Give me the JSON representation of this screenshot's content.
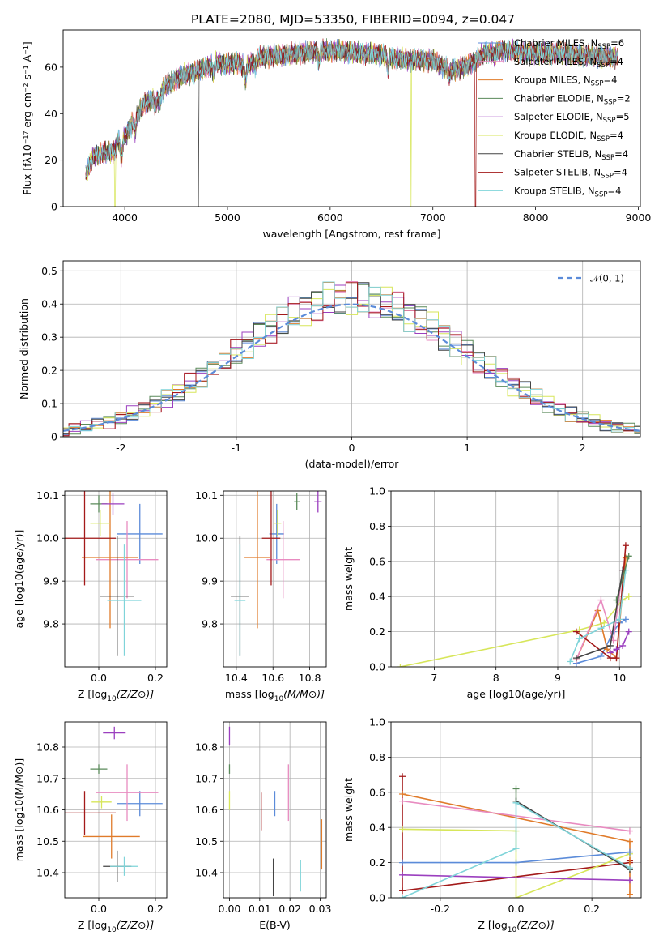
{
  "figure": {
    "title": "PLATE=2080, MJD=53350, FIBERID=0094, z=0.047"
  },
  "colors": {
    "Chabrier MILES": "#5b8bd9",
    "Salpeter MILES": "#e88bc0",
    "Kroupa MILES": "#e07b2a",
    "Chabrier ELODIE": "#5a8a5a",
    "Salpeter ELODIE": "#9b3fbf",
    "Kroupa ELODIE": "#d7e65a",
    "Chabrier STELIB": "#444444",
    "Salpeter STELIB": "#a31a1a",
    "Kroupa STELIB": "#7fd4d9"
  },
  "chart_data": [
    {
      "id": "spectrum",
      "type": "line",
      "xlabel": "wavelength [Angstrom, rest frame]",
      "ylabel": "Flux [fλ10⁻¹⁷ erg cm⁻² s⁻¹ A⁻¹]",
      "xlim": [
        3400,
        9020
      ],
      "ylim": [
        0,
        76
      ],
      "xticks": [
        4000,
        5000,
        6000,
        7000,
        8000,
        9000
      ],
      "yticks": [
        0,
        20,
        40,
        60
      ],
      "grid": false,
      "legend_position": "top-right",
      "series": [
        {
          "name": "Chabrier MILES, N_SSP=6",
          "label_main": "Chabrier MILES, N",
          "label_sub": "SSP",
          "label_tail": "=6"
        },
        {
          "name": "Salpeter MILES, N_SSP=4",
          "label_main": "Salpeter MILES, N",
          "label_sub": "SSP",
          "label_tail": "=4"
        },
        {
          "name": "Kroupa MILES, N_SSP=4",
          "label_main": "Kroupa MILES, N",
          "label_sub": "SSP",
          "label_tail": "=4"
        },
        {
          "name": "Chabrier ELODIE, N_SSP=2",
          "label_main": "Chabrier ELODIE, N",
          "label_sub": "SSP",
          "label_tail": "=2"
        },
        {
          "name": "Salpeter ELODIE, N_SSP=5",
          "label_main": "Salpeter ELODIE, N",
          "label_sub": "SSP",
          "label_tail": "=5"
        },
        {
          "name": "Kroupa ELODIE, N_SSP=4",
          "label_main": "Kroupa ELODIE, N",
          "label_sub": "SSP",
          "label_tail": "=4"
        },
        {
          "name": "Chabrier STELIB, N_SSP=4",
          "label_main": "Chabrier STELIB, N",
          "label_sub": "SSP",
          "label_tail": "=4"
        },
        {
          "name": "Salpeter STELIB, N_SSP=4",
          "label_main": "Salpeter STELIB, N",
          "label_sub": "SSP",
          "label_tail": "=4"
        },
        {
          "name": "Kroupa STELIB, N_SSP=4",
          "label_main": "Kroupa STELIB, N",
          "label_sub": "SSP",
          "label_tail": "=4"
        }
      ],
      "continuum": [
        [
          3620,
          14
        ],
        [
          3700,
          22
        ],
        [
          3800,
          23
        ],
        [
          3900,
          24
        ],
        [
          3960,
          28
        ],
        [
          4000,
          30
        ],
        [
          4100,
          38
        ],
        [
          4200,
          45
        ],
        [
          4300,
          46
        ],
        [
          4400,
          52
        ],
        [
          4500,
          55
        ],
        [
          4600,
          57
        ],
        [
          4700,
          58
        ],
        [
          4800,
          60
        ],
        [
          4900,
          62
        ],
        [
          5000,
          61
        ],
        [
          5100,
          62
        ],
        [
          5175,
          60
        ],
        [
          5300,
          64
        ],
        [
          5500,
          65
        ],
        [
          5700,
          66
        ],
        [
          5900,
          67
        ],
        [
          6100,
          67
        ],
        [
          6300,
          66
        ],
        [
          6560,
          65
        ],
        [
          6600,
          64
        ],
        [
          6800,
          63
        ],
        [
          7000,
          63
        ],
        [
          7100,
          60
        ],
        [
          7200,
          59
        ],
        [
          7300,
          60
        ],
        [
          7400,
          62
        ],
        [
          7500,
          66
        ],
        [
          7700,
          67
        ],
        [
          8000,
          66
        ],
        [
          8200,
          66
        ],
        [
          8500,
          65
        ],
        [
          8800,
          64
        ]
      ],
      "dips": [
        [
          3933,
          3
        ],
        [
          3968,
          -8
        ],
        [
          4102,
          -6
        ],
        [
          4300,
          -3
        ],
        [
          4340,
          -5
        ],
        [
          4861,
          -4
        ],
        [
          5175,
          -6
        ],
        [
          5270,
          -3
        ],
        [
          5890,
          -5
        ],
        [
          6563,
          -6
        ],
        [
          7160,
          -4
        ],
        [
          7600,
          -3
        ]
      ],
      "spikes": [
        {
          "x": 3905,
          "series": 5
        },
        {
          "x": 4720,
          "series": 6
        },
        {
          "x": 6790,
          "series": 5
        },
        {
          "x": 7415,
          "series": 7
        }
      ]
    },
    {
      "id": "residuals",
      "type": "line",
      "xlabel": "(data-model)/error",
      "ylabel": "Normed distribution",
      "xlim": [
        -2.5,
        2.5
      ],
      "ylim": [
        0,
        0.53
      ],
      "xticks": [
        -2,
        -1,
        0,
        1,
        2
      ],
      "yticks": [
        0.0,
        0.1,
        0.2,
        0.3,
        0.4,
        0.5
      ],
      "grid": true,
      "legend_position": "top-right",
      "reference": {
        "name": "N(0,1)",
        "label": "𝒩(0, 1)",
        "mean": 0,
        "sigma": 1
      },
      "bin_width": 0.1
    },
    {
      "id": "age_vs_Z",
      "type": "scatter",
      "xlabel_main": "Z [log",
      "xlabel_sub": "10",
      "xlabel_tail": "(Z/Z⊙)]",
      "ylabel": "age  [log10(age/yr)]",
      "xlim": [
        -0.12,
        0.24
      ],
      "ylim": [
        9.7,
        10.11
      ],
      "xticks": [
        0.0,
        0.2
      ],
      "yticks": [
        9.8,
        9.9,
        10.0,
        10.1
      ],
      "grid": true,
      "points": [
        {
          "series": 0,
          "x": 0.145,
          "y": 10.01,
          "xerr": 0.08,
          "yerr": 0.07
        },
        {
          "series": 1,
          "x": 0.1,
          "y": 9.95,
          "xerr": 0.11,
          "yerr": 0.09
        },
        {
          "series": 2,
          "x": 0.04,
          "y": 9.955,
          "xerr": 0.1,
          "yerr": 0.165
        },
        {
          "series": 3,
          "x": 0.0,
          "y": 10.08,
          "xerr": 0.03,
          "yerr": 0.02
        },
        {
          "series": 4,
          "x": 0.05,
          "y": 10.08,
          "xerr": 0.04,
          "yerr": 0.025
        },
        {
          "series": 5,
          "x": 0.005,
          "y": 10.035,
          "xerr": 0.035,
          "yerr": 0.03
        },
        {
          "series": 6,
          "x": 0.065,
          "y": 9.865,
          "xerr": 0.06,
          "yerr": 0.14
        },
        {
          "series": 7,
          "x": -0.05,
          "y": 10.0,
          "xerr": 0.11,
          "yerr": 0.11
        },
        {
          "series": 8,
          "x": 0.09,
          "y": 9.855,
          "xerr": 0.06,
          "yerr": 0.13
        }
      ]
    },
    {
      "id": "age_vs_mass",
      "type": "scatter",
      "xlabel_main": "mass [log",
      "xlabel_sub": "10",
      "xlabel_tail": "(M/M⊙)]",
      "xlim": [
        10.33,
        10.89
      ],
      "ylim": [
        9.7,
        10.11
      ],
      "xticks": [
        10.4,
        10.6,
        10.8
      ],
      "yticks": [
        9.8,
        9.9,
        10.0,
        10.1
      ],
      "grid": true,
      "points": [
        {
          "series": 0,
          "x": 10.62,
          "y": 10.01,
          "xerr": 0.04,
          "yerr": 0.07
        },
        {
          "series": 1,
          "x": 10.655,
          "y": 9.95,
          "xerr": 0.09,
          "yerr": 0.09
        },
        {
          "series": 2,
          "x": 10.515,
          "y": 9.955,
          "xerr": 0.07,
          "yerr": 0.165
        },
        {
          "series": 3,
          "x": 10.73,
          "y": 10.085,
          "xerr": 0.015,
          "yerr": 0.02
        },
        {
          "series": 4,
          "x": 10.845,
          "y": 10.085,
          "xerr": 0.02,
          "yerr": 0.025
        },
        {
          "series": 5,
          "x": 10.625,
          "y": 10.035,
          "xerr": 0.02,
          "yerr": 0.03
        },
        {
          "series": 6,
          "x": 10.42,
          "y": 9.865,
          "xerr": 0.05,
          "yerr": 0.14
        },
        {
          "series": 7,
          "x": 10.59,
          "y": 10.0,
          "xerr": 0.05,
          "yerr": 0.11
        },
        {
          "series": 8,
          "x": 10.42,
          "y": 9.855,
          "xerr": 0.03,
          "yerr": 0.13
        }
      ]
    },
    {
      "id": "weight_vs_age",
      "type": "line",
      "xlabel": "age  [log10(age/yr)]",
      "ylabel": "mass weight",
      "xlim": [
        6.3,
        10.35
      ],
      "ylim": [
        0,
        1.0
      ],
      "xticks": [
        7,
        8,
        9,
        10
      ],
      "yticks": [
        0.0,
        0.2,
        0.4,
        0.6,
        0.8,
        1.0
      ],
      "grid": true,
      "lines": [
        {
          "series": 5,
          "x": [
            6.45,
            9.35,
            9.75,
            10.05,
            10.15
          ],
          "y": [
            0.0,
            0.21,
            0.25,
            0.38,
            0.4
          ]
        },
        {
          "series": 0,
          "x": [
            9.3,
            9.7,
            9.9,
            10.0,
            10.1
          ],
          "y": [
            0.02,
            0.06,
            0.2,
            0.25,
            0.27
          ]
        },
        {
          "series": 2,
          "x": [
            9.3,
            9.65,
            9.8,
            9.95,
            10.1
          ],
          "y": [
            0.04,
            0.32,
            0.1,
            0.05,
            0.62
          ]
        },
        {
          "series": 1,
          "x": [
            9.3,
            9.7,
            9.9,
            10.05
          ],
          "y": [
            0.04,
            0.38,
            0.15,
            0.55
          ]
        },
        {
          "series": 7,
          "x": [
            9.3,
            9.85,
            9.95,
            10.1
          ],
          "y": [
            0.2,
            0.05,
            0.05,
            0.69
          ]
        },
        {
          "series": 8,
          "x": [
            9.2,
            9.35,
            9.7,
            10.0,
            10.1
          ],
          "y": [
            0.03,
            0.16,
            0.22,
            0.27,
            0.55
          ]
        },
        {
          "series": 4,
          "x": [
            9.85,
            9.95,
            10.05,
            10.15
          ],
          "y": [
            0.08,
            0.1,
            0.12,
            0.2
          ]
        },
        {
          "series": 3,
          "x": [
            9.95,
            10.15
          ],
          "y": [
            0.38,
            0.63
          ]
        },
        {
          "series": 6,
          "x": [
            9.3,
            9.85,
            10.05
          ],
          "y": [
            0.05,
            0.12,
            0.55
          ]
        }
      ]
    },
    {
      "id": "mass_vs_Z",
      "type": "scatter",
      "xlabel_main": "Z [log",
      "xlabel_sub": "10",
      "xlabel_tail": "(Z/Z⊙)]",
      "ylabel": "mass [log10(M/M⊙)]",
      "xlim": [
        -0.12,
        0.24
      ],
      "ylim": [
        10.32,
        10.88
      ],
      "xticks": [
        0.0,
        0.2
      ],
      "yticks": [
        10.4,
        10.5,
        10.6,
        10.7,
        10.8
      ],
      "grid": true,
      "points": [
        {
          "series": 0,
          "x": 0.145,
          "y": 10.62,
          "xerr": 0.08,
          "yerr": 0.04
        },
        {
          "series": 1,
          "x": 0.1,
          "y": 10.655,
          "xerr": 0.11,
          "yerr": 0.09
        },
        {
          "series": 2,
          "x": 0.045,
          "y": 10.515,
          "xerr": 0.1,
          "yerr": 0.07
        },
        {
          "series": 3,
          "x": 0.0,
          "y": 10.73,
          "xerr": 0.03,
          "yerr": 0.015
        },
        {
          "series": 4,
          "x": 0.055,
          "y": 10.845,
          "xerr": 0.04,
          "yerr": 0.02
        },
        {
          "series": 5,
          "x": 0.01,
          "y": 10.625,
          "xerr": 0.035,
          "yerr": 0.02
        },
        {
          "series": 6,
          "x": 0.065,
          "y": 10.42,
          "xerr": 0.05,
          "yerr": 0.05
        },
        {
          "series": 7,
          "x": -0.05,
          "y": 10.59,
          "xerr": 0.11,
          "yerr": 0.07
        },
        {
          "series": 8,
          "x": 0.09,
          "y": 10.42,
          "xerr": 0.05,
          "yerr": 0.03
        }
      ]
    },
    {
      "id": "mass_vs_ebv",
      "type": "scatter",
      "xlabel": "E(B-V)",
      "xlim": [
        -0.002,
        0.032
      ],
      "ylim": [
        10.32,
        10.88
      ],
      "xticks": [
        0.0,
        0.01,
        0.02,
        0.03
      ],
      "yticks": [
        10.4,
        10.5,
        10.6,
        10.7,
        10.8
      ],
      "grid": true,
      "points": [
        {
          "series": 0,
          "x": 0.015,
          "y": 10.62,
          "xerr": 0,
          "yerr": 0.04
        },
        {
          "series": 1,
          "x": 0.0195,
          "y": 10.655,
          "xerr": 0,
          "yerr": 0.09
        },
        {
          "series": 2,
          "x": 0.0305,
          "y": 10.49,
          "xerr": 0,
          "yerr": 0.08
        },
        {
          "series": 3,
          "x": 0.0,
          "y": 10.73,
          "xerr": 0,
          "yerr": 0.015
        },
        {
          "series": 4,
          "x": 0.0,
          "y": 10.835,
          "xerr": 0,
          "yerr": 0.03
        },
        {
          "series": 5,
          "x": 0.0,
          "y": 10.63,
          "xerr": 0,
          "yerr": 0.03
        },
        {
          "series": 6,
          "x": 0.0145,
          "y": 10.385,
          "xerr": 0,
          "yerr": 0.06
        },
        {
          "series": 7,
          "x": 0.0105,
          "y": 10.595,
          "xerr": 0,
          "yerr": 0.06
        },
        {
          "series": 8,
          "x": 0.0235,
          "y": 10.39,
          "xerr": 0,
          "yerr": 0.05
        }
      ]
    },
    {
      "id": "weight_vs_Z",
      "type": "line",
      "xlabel_main": "Z [log",
      "xlabel_sub": "10",
      "xlabel_tail": "(Z/Z⊙)]",
      "ylabel": "mass weight",
      "xlim": [
        -0.33,
        0.33
      ],
      "ylim": [
        0,
        1.0
      ],
      "xticks": [
        -0.2,
        0.0,
        0.2
      ],
      "yticks": [
        0.0,
        0.2,
        0.4,
        0.6,
        0.8,
        1.0
      ],
      "grid": true,
      "lines": [
        {
          "series": 7,
          "x": [
            -0.3,
            -0.3,
            0.3,
            0.3
          ],
          "y": [
            0.69,
            0.04,
            0.2,
            0.21
          ]
        },
        {
          "series": 2,
          "x": [
            -0.3,
            0.3,
            0.3
          ],
          "y": [
            0.59,
            0.32,
            0.02
          ]
        },
        {
          "series": 1,
          "x": [
            -0.3,
            0.3
          ],
          "y": [
            0.55,
            0.38
          ]
        },
        {
          "series": 5,
          "x": [
            -0.3,
            0.0,
            0.0,
            0.3
          ],
          "y": [
            0.39,
            0.38,
            0.0,
            0.25
          ]
        },
        {
          "series": 0,
          "x": [
            -0.3,
            0.0,
            0.3
          ],
          "y": [
            0.2,
            0.2,
            0.26
          ]
        },
        {
          "series": 4,
          "x": [
            -0.3,
            0.3
          ],
          "y": [
            0.13,
            0.1
          ]
        },
        {
          "series": 3,
          "x": [
            0.0,
            0.0
          ],
          "y": [
            0.62,
            0.55
          ]
        },
        {
          "series": 6,
          "x": [
            0.0,
            0.3
          ],
          "y": [
            0.55,
            0.16
          ]
        },
        {
          "series": 8,
          "x": [
            -0.3,
            0.0,
            0.0,
            0.3
          ],
          "y": [
            0.0,
            0.28,
            0.54,
            0.17
          ]
        }
      ]
    }
  ]
}
